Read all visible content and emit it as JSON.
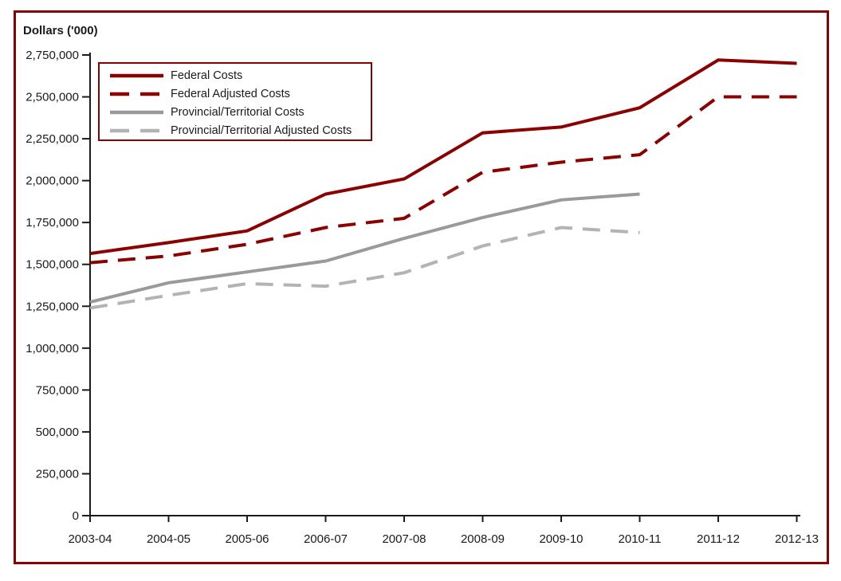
{
  "window": {
    "background_color": "#ffffff",
    "frame_color": "#8B0000",
    "axis_color": "#1a1a1a"
  },
  "chart_data": {
    "type": "line",
    "title": "Dollars ('000)",
    "ylabel": "Dollars ('000)",
    "xlabel": "",
    "categories": [
      "2003-04",
      "2004-05",
      "2005-06",
      "2006-07",
      "2007-08",
      "2008-09",
      "2009-10",
      "2010-11",
      "2011-12",
      "2012-13"
    ],
    "series": [
      {
        "name": "Federal Costs",
        "color": "#8B0000",
        "line_style": "solid",
        "values": [
          1565000,
          1630000,
          1700000,
          1920000,
          2010000,
          2285000,
          2320000,
          2435000,
          2720000,
          2700000
        ]
      },
      {
        "name": "Federal Adjusted Costs",
        "color": "#8B0000",
        "line_style": "dashed",
        "values": [
          1510000,
          1550000,
          1620000,
          1720000,
          1775000,
          2050000,
          2110000,
          2155000,
          2500000,
          2500000
        ]
      },
      {
        "name": "Provincial/Territorial Costs",
        "color": "#9A9A9A",
        "line_style": "solid",
        "values": [
          1275000,
          1390000,
          1455000,
          1520000,
          1655000,
          1780000,
          1885000,
          1920000,
          null,
          null
        ]
      },
      {
        "name": "Provincial/Territorial Adjusted Costs",
        "color": "#B3B3B3",
        "line_style": "dashed",
        "values": [
          1240000,
          1315000,
          1385000,
          1370000,
          1450000,
          1610000,
          1720000,
          1690000,
          null,
          null
        ]
      }
    ],
    "ylim": [
      0,
      2750000
    ],
    "ytick_step": 250000,
    "ytick_labels": [
      "0",
      "250,000",
      "500,000",
      "750,000",
      "1,000,000",
      "1,250,000",
      "1,500,000",
      "1,750,000",
      "2,000,000",
      "2,250,000",
      "2,500,000",
      "2,750,000"
    ],
    "grid": false,
    "legend_position": "top-left"
  }
}
